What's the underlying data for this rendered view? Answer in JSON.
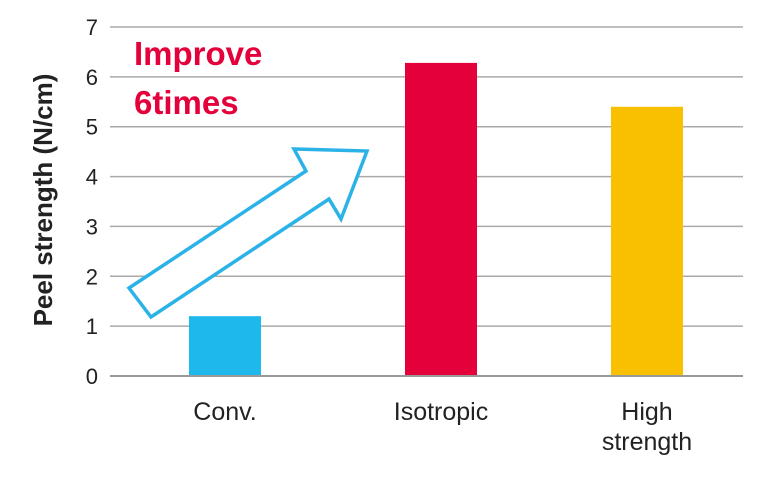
{
  "chart_data": {
    "type": "bar",
    "title": "",
    "xlabel": "",
    "ylabel": "Peel strength (N/cm)",
    "ylim": [
      0,
      7
    ],
    "yticks": [
      0,
      1,
      2,
      3,
      4,
      5,
      6,
      7
    ],
    "grid": true,
    "categories": [
      {
        "lines": [
          "Conv."
        ]
      },
      {
        "lines": [
          "Isotropic"
        ]
      },
      {
        "lines": [
          "High",
          "strength"
        ]
      }
    ],
    "values": [
      1.2,
      6.28,
      5.4
    ],
    "colors": [
      "#1eb8ec",
      "#e4003a",
      "#f8c000"
    ],
    "annotation": {
      "lines": [
        "Improve",
        "6times"
      ],
      "color": "#e4003a",
      "arrow_color": "#2bb3e8"
    }
  }
}
